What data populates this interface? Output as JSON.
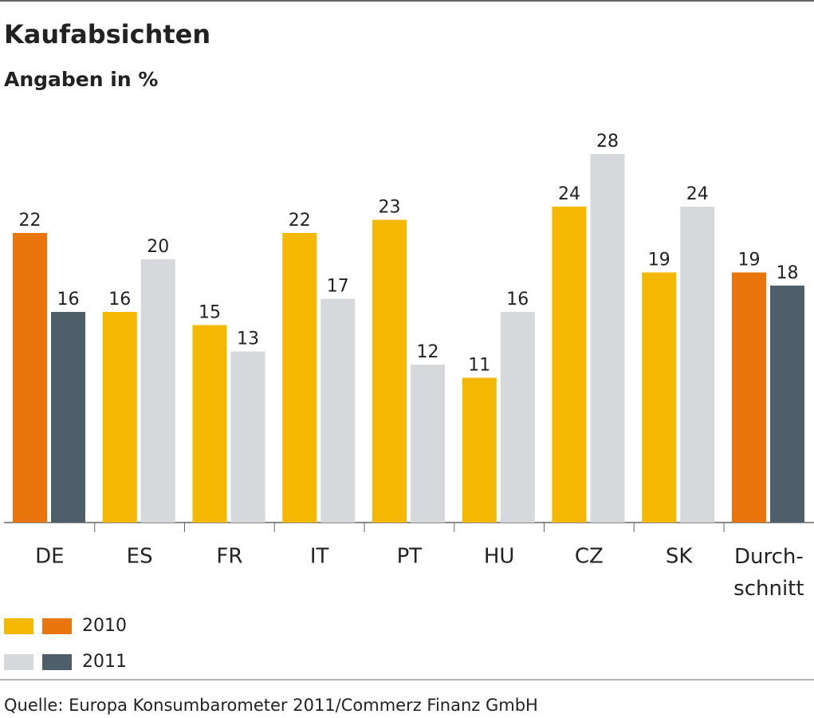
{
  "chart_data": {
    "type": "bar",
    "title": "Kaufabsichten",
    "subtitle": "Angaben in %",
    "categories": [
      "DE",
      "ES",
      "FR",
      "IT",
      "PT",
      "HU",
      "CZ",
      "SK",
      "Durch-\nschnitt"
    ],
    "series": [
      {
        "name": "2010",
        "color": "#f5b800",
        "colors": [
          "#e8760c",
          "#f5b800",
          "#f5b800",
          "#f5b800",
          "#f5b800",
          "#f5b800",
          "#f5b800",
          "#f5b800",
          "#e8760c"
        ],
        "values": [
          22,
          16,
          15,
          22,
          23,
          11,
          24,
          19,
          19
        ]
      },
      {
        "name": "2011",
        "color": "#d5d9db",
        "colors": [
          "#4f5f6a",
          "#d5d9db",
          "#d5d9db",
          "#d5d9db",
          "#d5d9db",
          "#d5d9db",
          "#d5d9db",
          "#d5d9db",
          "#4f5f6a"
        ],
        "values": [
          16,
          20,
          13,
          17,
          12,
          16,
          28,
          24,
          18
        ]
      }
    ],
    "source": "Quelle: Europa Konsumbarometer 2011/Commerz Finanz GmbH"
  }
}
